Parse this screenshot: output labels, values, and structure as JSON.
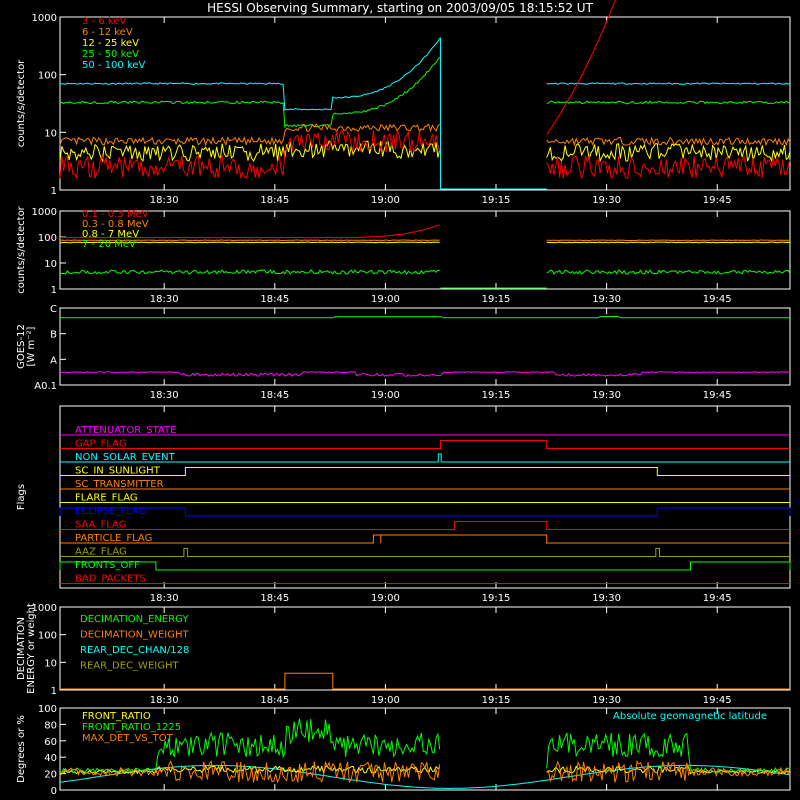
{
  "title": "HESSI Observing Summary, starting on 2003/09/05 18:15:52 UT",
  "time_ticks": [
    "18:30",
    "18:45",
    "19:00",
    "19:15",
    "19:30",
    "19:45"
  ],
  "colors": {
    "red": "#ff0000",
    "orange": "#ff8000",
    "yellow": "#ffff00",
    "green": "#00ff00",
    "cyan": "#00ffff",
    "magenta": "#ff00ff",
    "blue": "#0000ff",
    "olive": "#a0a000",
    "lightgreen": "#60ff60",
    "frame": "#ffffff"
  },
  "chart_data": [
    {
      "type": "line",
      "ylabel": "counts/s/detector",
      "yscale": "log",
      "yticks": [
        "1",
        "10",
        "100",
        "1000"
      ],
      "series": [
        {
          "name": "3 - 6 keV",
          "color": "#ff0000"
        },
        {
          "name": "6 - 12 keV",
          "color": "#ff8000"
        },
        {
          "name": "12 - 25 keV",
          "color": "#ffff00"
        },
        {
          "name": "25 - 50 keV",
          "color": "#00ff00"
        },
        {
          "name": "50 - 100 keV",
          "color": "#00ffff"
        }
      ]
    },
    {
      "type": "line",
      "ylabel": "counts/s/detector",
      "yscale": "log",
      "yticks": [
        "1",
        "10",
        "100",
        "1000"
      ],
      "series": [
        {
          "name": "0.1 - 0.3 MeV",
          "color": "#ff0000"
        },
        {
          "name": "0.3 - 0.8 MeV",
          "color": "#ff8000"
        },
        {
          "name": "0.8 - 7 MeV",
          "color": "#ffff00"
        },
        {
          "name": "7 - 20 MeV",
          "color": "#00ff00"
        }
      ]
    },
    {
      "type": "line",
      "ylabel_lines": [
        "GOES-12",
        "[W m⁻²]"
      ],
      "yticks": [
        "A0.1",
        "A",
        "B",
        "C"
      ],
      "series": [
        {
          "color": "#00ff00"
        },
        {
          "color": "#ff00ff"
        }
      ]
    },
    {
      "type": "line",
      "ylabel": "Flags",
      "flags": [
        {
          "name": "ATTENUATOR_STATE",
          "color": "#ff00ff"
        },
        {
          "name": "GAP_FLAG",
          "color": "#ff0000"
        },
        {
          "name": "NON_SOLAR_EVENT",
          "color": "#00ffff"
        },
        {
          "name": "SC_IN_SUNLIGHT",
          "color": "#ffff00"
        },
        {
          "name": "SC_TRANSMITTER",
          "color": "#ff8000"
        },
        {
          "name": "FLARE_FLAG",
          "color": "#ffff00"
        },
        {
          "name": "ECLIPSE_FLAG",
          "color": "#0000ff"
        },
        {
          "name": "SAA_FLAG",
          "color": "#ff0000"
        },
        {
          "name": "PARTICLE_FLAG",
          "color": "#ff8000"
        },
        {
          "name": "AAZ_FLAG",
          "color": "#a0a000"
        },
        {
          "name": "FRONTS_OFF",
          "color": "#00ff00"
        },
        {
          "name": "BAD_PACKETS",
          "color": "#ff0000"
        }
      ]
    },
    {
      "type": "line",
      "ylabel_lines": [
        "DECIMATION",
        "ENERGY or weight"
      ],
      "yscale": "log",
      "yticks": [
        "1",
        "10",
        "100",
        "1000"
      ],
      "series": [
        {
          "name": "DECIMATION_ENERGY",
          "color": "#00ff00"
        },
        {
          "name": "DECIMATION_WEIGHT",
          "color": "#ff8000"
        },
        {
          "name": "REAR_DEC_CHAN/128",
          "color": "#00ffff"
        },
        {
          "name": "REAR_DEC_WEIGHT",
          "color": "#a0a000"
        }
      ]
    },
    {
      "type": "line",
      "ylabel": "Degrees or %",
      "yticks": [
        "0",
        "20",
        "40",
        "60",
        "80",
        "100"
      ],
      "ylim": [
        0,
        100
      ],
      "series": [
        {
          "name": "FRONT_RATIO",
          "color": "#ffff00"
        },
        {
          "name": "FRONT_RATIO_1225",
          "color": "#00ff00"
        },
        {
          "name": "MAX_DET_VS_TOT",
          "color": "#ff8000"
        }
      ],
      "annotation": {
        "text": "Absolute geomagnetic latitude",
        "color": "#00ffff"
      }
    }
  ]
}
